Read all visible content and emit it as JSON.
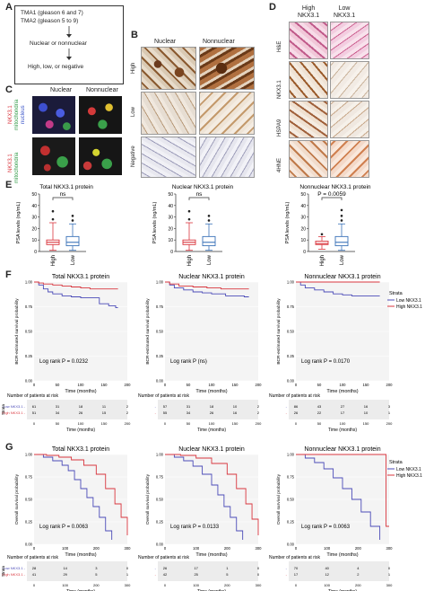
{
  "panels": {
    "A": {
      "letter": "A",
      "tma1": "TMA1 (gleason 6 and 7)",
      "tma2": "TMA2 (gleason 5 to 9)",
      "step2": "Nuclear or nonnuclear",
      "step3": "High, low, or negative"
    },
    "B": {
      "letter": "B",
      "col_nuclear": "Nuclear",
      "col_nonnuclear": "Nonnuclear",
      "rows": [
        "High",
        "Low",
        "Negative"
      ]
    },
    "C": {
      "letter": "C",
      "col_nuclear": "Nuclear",
      "col_nonnuclear": "Nonnuclear",
      "row1_labels": [
        "NKX3.1",
        "mitochondria",
        "nucleus"
      ],
      "row2_labels": [
        "NKX3.1",
        "mitochondria"
      ]
    },
    "D": {
      "letter": "D",
      "col_high": "High\nNKX3.1",
      "col_low": "Low\nNKX3.1",
      "rows": [
        "H&E",
        "NKX3.1",
        "HSPA9",
        "4HNE"
      ]
    },
    "E": {
      "letter": "E",
      "ylabel": "PSA levels (ng/mL)"
    },
    "F": {
      "letter": "F",
      "ylabel": "BCR-estimated survival probability",
      "xlabel": "Time (months)",
      "risk_title": "Number of patients at risk",
      "strata_title": "Strata"
    },
    "G": {
      "letter": "G",
      "ylabel": "Overall survival probability",
      "xlabel": "Time (months)",
      "risk_title": "Number of patients at risk",
      "strata_title": "Strata"
    }
  },
  "legend": {
    "title": "Strata",
    "low": "Low NKX3.1",
    "high": "High NKX3.1"
  },
  "colors": {
    "low": "#4b4bb8",
    "high": "#d9363e",
    "box_high": "#d9363e",
    "box_low": "#3a72b8"
  },
  "chart_data": [
    {
      "type": "box",
      "title": "Total NKX3.1 protein",
      "categories": [
        "High",
        "Low"
      ],
      "ylim": [
        0,
        50
      ],
      "yticks": [
        0,
        10,
        20,
        30,
        40,
        50
      ],
      "ylabel": "PSA levels (ng/mL)",
      "annotation": "ns",
      "boxes": [
        {
          "name": "High",
          "q1": 6,
          "median": 8,
          "q3": 10,
          "lo": 1,
          "hi": 25,
          "outliers": [
            28,
            35
          ]
        },
        {
          "name": "Low",
          "q1": 5,
          "median": 8,
          "q3": 13,
          "lo": 1,
          "hi": 24,
          "outliers": [
            27,
            31
          ]
        }
      ]
    },
    {
      "type": "box",
      "title": "Nuclear NKX3.1 protein",
      "categories": [
        "High",
        "Low"
      ],
      "ylim": [
        0,
        50
      ],
      "yticks": [
        0,
        10,
        20,
        30,
        40,
        50
      ],
      "ylabel": "PSA levels (ng/mL)",
      "annotation": "ns",
      "boxes": [
        {
          "name": "High",
          "q1": 6,
          "median": 8,
          "q3": 10,
          "lo": 1,
          "hi": 25,
          "outliers": [
            28,
            35
          ]
        },
        {
          "name": "Low",
          "q1": 5,
          "median": 8,
          "q3": 13,
          "lo": 1,
          "hi": 24,
          "outliers": [
            27,
            31
          ]
        }
      ]
    },
    {
      "type": "box",
      "title": "Nonnuclear NKX3.1 protein",
      "categories": [
        "High",
        "Low"
      ],
      "ylim": [
        0,
        50
      ],
      "yticks": [
        0,
        10,
        20,
        30,
        40,
        50
      ],
      "ylabel": "PSA levels (ng/mL)",
      "annotation": "P = 0.0059",
      "boxes": [
        {
          "name": "High",
          "q1": 6,
          "median": 7,
          "q3": 9,
          "lo": 2,
          "hi": 13,
          "outliers": [
            15
          ]
        },
        {
          "name": "Low",
          "q1": 5,
          "median": 8,
          "q3": 13,
          "lo": 1,
          "hi": 24,
          "outliers": [
            27,
            31,
            36
          ]
        }
      ]
    },
    {
      "type": "line",
      "title": "Total NKX3.1 protein",
      "xlim": [
        0,
        200
      ],
      "xticks": [
        0,
        50,
        100,
        150,
        200
      ],
      "ylim": [
        0,
        1
      ],
      "yticks": [
        0,
        0.25,
        0.5,
        0.75,
        1
      ],
      "xlabel": "Time (months)",
      "ylabel": "BCR-estimated survival probability",
      "annotation": "Log rank P = 0.0232",
      "series": [
        {
          "name": "Low NKX3.1",
          "x": [
            0,
            10,
            20,
            30,
            40,
            60,
            80,
            100,
            120,
            140,
            160,
            175,
            180
          ],
          "y": [
            1,
            0.97,
            0.93,
            0.9,
            0.88,
            0.86,
            0.85,
            0.84,
            0.84,
            0.78,
            0.76,
            0.74,
            0.74
          ]
        },
        {
          "name": "High NKX3.1",
          "x": [
            0,
            10,
            20,
            40,
            60,
            80,
            100,
            120,
            150,
            180
          ],
          "y": [
            1,
            0.99,
            0.98,
            0.97,
            0.96,
            0.95,
            0.94,
            0.93,
            0.93,
            0.93
          ]
        }
      ],
      "risk_rows": [
        {
          "name": "Low NKX3.1",
          "values": [
            "61",
            "31",
            "18",
            "11",
            "2"
          ]
        },
        {
          "name": "High NKX3.1",
          "values": [
            "51",
            "34",
            "26",
            "15",
            "2"
          ]
        }
      ]
    },
    {
      "type": "line",
      "title": "Nuclear NKX3.1 protein",
      "xlim": [
        0,
        200
      ],
      "xticks": [
        0,
        50,
        100,
        150,
        200
      ],
      "ylim": [
        0,
        1
      ],
      "yticks": [
        0,
        0.25,
        0.5,
        0.75,
        1
      ],
      "xlabel": "Time (months)",
      "ylabel": "BCR-estimated survival probability",
      "annotation": "Log rank P (ns)",
      "series": [
        {
          "name": "Low NKX3.1",
          "x": [
            0,
            10,
            20,
            40,
            60,
            80,
            100,
            130,
            150,
            170,
            180
          ],
          "y": [
            1,
            0.97,
            0.94,
            0.92,
            0.9,
            0.89,
            0.88,
            0.86,
            0.86,
            0.85,
            0.85
          ]
        },
        {
          "name": "High NKX3.1",
          "x": [
            0,
            10,
            30,
            60,
            90,
            120,
            150,
            180
          ],
          "y": [
            1,
            0.98,
            0.96,
            0.95,
            0.94,
            0.93,
            0.93,
            0.93
          ]
        }
      ],
      "risk_rows": [
        {
          "name": "Low NKX3.1",
          "values": [
            "57",
            "31",
            "18",
            "10",
            "2"
          ]
        },
        {
          "name": "High NKX3.1",
          "values": [
            "55",
            "34",
            "26",
            "16",
            "2"
          ]
        }
      ]
    },
    {
      "type": "line",
      "title": "Nonnuclear NKX3.1 protein",
      "xlim": [
        0,
        200
      ],
      "xticks": [
        0,
        50,
        100,
        150,
        200
      ],
      "ylim": [
        0,
        1
      ],
      "yticks": [
        0,
        0.25,
        0.5,
        0.75,
        1
      ],
      "xlabel": "Time (months)",
      "ylabel": "BCR-estimated survival probability",
      "annotation": "Log rank P = 0.0170",
      "series": [
        {
          "name": "Low NKX3.1",
          "x": [
            0,
            10,
            20,
            40,
            60,
            80,
            100,
            120,
            150,
            180
          ],
          "y": [
            1,
            0.97,
            0.94,
            0.92,
            0.9,
            0.88,
            0.87,
            0.86,
            0.86,
            0.86
          ]
        },
        {
          "name": "High NKX3.1",
          "x": [
            0,
            20,
            60,
            100,
            140,
            180
          ],
          "y": [
            1,
            1,
            1,
            1,
            1,
            1
          ]
        }
      ],
      "risk_rows": [
        {
          "name": "Low NKX3.1",
          "values": [
            "86",
            "43",
            "27",
            "16",
            "3"
          ]
        },
        {
          "name": "High NKX3.1",
          "values": [
            "26",
            "22",
            "17",
            "10",
            "1"
          ]
        }
      ]
    },
    {
      "type": "line",
      "title": "Total NKX3.1 protein",
      "xlim": [
        0,
        300
      ],
      "xticks": [
        0,
        100,
        200,
        300
      ],
      "ylim": [
        0,
        1
      ],
      "yticks": [
        0,
        0.25,
        0.5,
        0.75,
        1
      ],
      "xlabel": "Time (months)",
      "ylabel": "Overall survival probability",
      "annotation": "Log rank P = 0.0063",
      "series": [
        {
          "name": "Low NKX3.1",
          "x": [
            0,
            30,
            60,
            90,
            110,
            130,
            150,
            170,
            190,
            210,
            230,
            250
          ],
          "y": [
            1,
            0.97,
            0.93,
            0.88,
            0.82,
            0.72,
            0.62,
            0.52,
            0.42,
            0.3,
            0.15,
            0.05
          ]
        },
        {
          "name": "High NKX3.1",
          "x": [
            0,
            40,
            80,
            120,
            160,
            200,
            230,
            260,
            280,
            300
          ],
          "y": [
            1,
            0.99,
            0.97,
            0.94,
            0.88,
            0.78,
            0.62,
            0.45,
            0.3,
            0.1
          ]
        }
      ],
      "risk_rows": [
        {
          "name": "Low NKX3.1",
          "values": [
            "28",
            "14",
            "3",
            "0"
          ]
        },
        {
          "name": "High NKX3.1",
          "values": [
            "41",
            "29",
            "5",
            "1"
          ]
        }
      ]
    },
    {
      "type": "line",
      "title": "Nuclear NKX3.1 protein",
      "xlim": [
        0,
        300
      ],
      "xticks": [
        0,
        100,
        200,
        300
      ],
      "ylim": [
        0,
        1
      ],
      "yticks": [
        0,
        0.25,
        0.5,
        0.75,
        1
      ],
      "xlabel": "Time (months)",
      "ylabel": "Overall survival probability",
      "annotation": "Log rank P = 0.0133",
      "series": [
        {
          "name": "Low NKX3.1",
          "x": [
            0,
            30,
            60,
            90,
            120,
            150,
            170,
            190,
            210,
            230,
            250
          ],
          "y": [
            1,
            0.97,
            0.93,
            0.87,
            0.78,
            0.66,
            0.55,
            0.42,
            0.3,
            0.15,
            0.05
          ]
        },
        {
          "name": "High NKX3.1",
          "x": [
            0,
            50,
            100,
            150,
            200,
            230,
            260,
            280,
            300
          ],
          "y": [
            1,
            0.99,
            0.96,
            0.9,
            0.78,
            0.62,
            0.45,
            0.28,
            0.1
          ]
        }
      ],
      "risk_rows": [
        {
          "name": "Low NKX3.1",
          "values": [
            "26",
            "17",
            "1",
            "0"
          ]
        },
        {
          "name": "High NKX3.1",
          "values": [
            "42",
            "25",
            "5",
            "0"
          ]
        }
      ]
    },
    {
      "type": "line",
      "title": "Nonnuclear NKX3.1 protein",
      "xlim": [
        0,
        300
      ],
      "xticks": [
        0,
        100,
        200,
        300
      ],
      "ylim": [
        0,
        1
      ],
      "yticks": [
        0,
        0.25,
        0.5,
        0.75,
        1
      ],
      "xlabel": "Time (months)",
      "ylabel": "Overall survival probability",
      "annotation": "Log rank P = 0.0063",
      "series": [
        {
          "name": "Low NKX3.1",
          "x": [
            0,
            30,
            60,
            90,
            120,
            150,
            180,
            210,
            240,
            270
          ],
          "y": [
            1,
            0.96,
            0.91,
            0.84,
            0.74,
            0.62,
            0.5,
            0.36,
            0.2,
            0.05
          ]
        },
        {
          "name": "High NKX3.1",
          "x": [
            0,
            50,
            100,
            150,
            200,
            250,
            280,
            290,
            300
          ],
          "y": [
            1,
            1,
            1,
            1,
            1,
            1,
            1,
            0.2,
            0.2
          ]
        }
      ],
      "risk_rows": [
        {
          "name": "Low NKX3.1",
          "values": [
            "70",
            "40",
            "4",
            "0"
          ]
        },
        {
          "name": "High NKX3.1",
          "values": [
            "17",
            "12",
            "2",
            "1"
          ]
        }
      ]
    }
  ]
}
